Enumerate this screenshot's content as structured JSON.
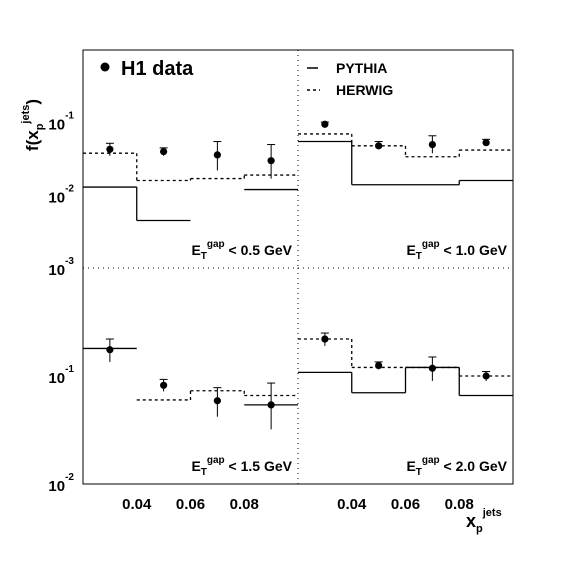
{
  "chart_data": [
    {
      "type": "scatter",
      "panel": "top-left",
      "cut_label": {
        "main": "E",
        "sub": "T",
        "sup": "gap",
        "rest": " < 0.5 GeV"
      },
      "xlim": [
        0.02,
        0.1
      ],
      "ylim": [
        0.001,
        1
      ],
      "yscale": "log",
      "bins": [
        [
          0.02,
          0.04
        ],
        [
          0.04,
          0.06
        ],
        [
          0.06,
          0.08
        ],
        [
          0.08,
          0.1
        ]
      ],
      "series": [
        {
          "name": "H1 data",
          "style": "points",
          "x": [
            0.03,
            0.05,
            0.07,
            0.09
          ],
          "values": [
            0.043,
            0.04,
            0.036,
            0.03
          ],
          "err_low": [
            0.035,
            0.035,
            0.022,
            0.017
          ],
          "err_high": [
            0.052,
            0.045,
            0.055,
            0.05
          ]
        },
        {
          "name": "PYTHIA",
          "style": "solid",
          "values": [
            0.013,
            0.0045,
            null,
            0.012
          ]
        },
        {
          "name": "HERWIG",
          "style": "dashed",
          "values": [
            0.038,
            0.016,
            0.017,
            0.019
          ]
        }
      ]
    },
    {
      "type": "scatter",
      "panel": "top-right",
      "cut_label": {
        "main": "E",
        "sub": "T",
        "sup": "gap",
        "rest": " < 1.0 GeV"
      },
      "xlim": [
        0.02,
        0.1
      ],
      "ylim": [
        0.001,
        1
      ],
      "yscale": "log",
      "bins": [
        [
          0.02,
          0.04
        ],
        [
          0.04,
          0.06
        ],
        [
          0.06,
          0.08
        ],
        [
          0.08,
          0.1
        ]
      ],
      "series": [
        {
          "name": "H1 data",
          "style": "points",
          "x": [
            0.03,
            0.05,
            0.07,
            0.09
          ],
          "values": [
            0.095,
            0.048,
            0.05,
            0.053
          ],
          "err_low": [
            0.088,
            0.043,
            0.038,
            0.048
          ],
          "err_high": [
            0.102,
            0.055,
            0.066,
            0.059
          ]
        },
        {
          "name": "PYTHIA",
          "style": "solid",
          "values": [
            0.055,
            0.014,
            0.014,
            0.016
          ]
        },
        {
          "name": "HERWIG",
          "style": "dashed",
          "values": [
            0.07,
            0.048,
            0.034,
            0.042
          ]
        }
      ]
    },
    {
      "type": "scatter",
      "panel": "bottom-left",
      "cut_label": {
        "main": "E",
        "sub": "T",
        "sup": "gap",
        "rest": " < 1.5 GeV"
      },
      "xlim": [
        0.02,
        0.1
      ],
      "ylim": [
        0.01,
        1
      ],
      "yscale": "log",
      "bins": [
        [
          0.02,
          0.04
        ],
        [
          0.04,
          0.06
        ],
        [
          0.06,
          0.08
        ],
        [
          0.08,
          0.1
        ]
      ],
      "series": [
        {
          "name": "H1 data",
          "style": "points",
          "x": [
            0.03,
            0.05,
            0.07,
            0.09
          ],
          "values": [
            0.175,
            0.082,
            0.059,
            0.054
          ],
          "err_low": [
            0.135,
            0.072,
            0.042,
            0.032
          ],
          "err_high": [
            0.22,
            0.093,
            0.078,
            0.086
          ]
        },
        {
          "name": "PYTHIA",
          "style": "solid",
          "values": [
            0.18,
            null,
            null,
            0.054
          ]
        },
        {
          "name": "HERWIG",
          "style": "dashed",
          "values": [
            null,
            0.06,
            0.073,
            0.066
          ]
        }
      ]
    },
    {
      "type": "scatter",
      "panel": "bottom-right",
      "cut_label": {
        "main": "E",
        "sub": "T",
        "sup": "gap",
        "rest": " < 2.0 GeV"
      },
      "xlim": [
        0.02,
        0.1
      ],
      "ylim": [
        0.01,
        1
      ],
      "yscale": "log",
      "bins": [
        [
          0.02,
          0.04
        ],
        [
          0.04,
          0.06
        ],
        [
          0.06,
          0.08
        ],
        [
          0.08,
          0.1
        ]
      ],
      "series": [
        {
          "name": "H1 data",
          "style": "points",
          "x": [
            0.03,
            0.05,
            0.07,
            0.09
          ],
          "values": [
            0.22,
            0.125,
            0.118,
            0.1
          ],
          "err_low": [
            0.19,
            0.115,
            0.09,
            0.09
          ],
          "err_high": [
            0.25,
            0.135,
            0.15,
            0.11
          ]
        },
        {
          "name": "PYTHIA",
          "style": "solid",
          "values": [
            0.108,
            0.07,
            0.12,
            0.066
          ]
        },
        {
          "name": "HERWIG",
          "style": "dashed",
          "values": [
            0.22,
            0.12,
            0.12,
            0.1
          ]
        }
      ]
    }
  ],
  "axes": {
    "ylabel": {
      "main": "f(x",
      "sub": "p",
      "sup": "jets",
      "close": ")"
    },
    "xlabel": {
      "main": "x",
      "sub": "p",
      "sup": "jets"
    },
    "x_ticks": [
      "0.04",
      "0.06",
      "0.08"
    ],
    "y_ticks_top": [
      {
        "base": "10",
        "exp": "-1"
      },
      {
        "base": "10",
        "exp": "-2"
      },
      {
        "base": "10",
        "exp": "-3"
      }
    ],
    "y_ticks_bottom": [
      {
        "base": "10",
        "exp": "-1"
      },
      {
        "base": "10",
        "exp": "-2"
      }
    ]
  },
  "legend": {
    "data_label": "H1 data",
    "pythia_label": "PYTHIA",
    "herwig_label": "HERWIG",
    "placement": "top"
  }
}
